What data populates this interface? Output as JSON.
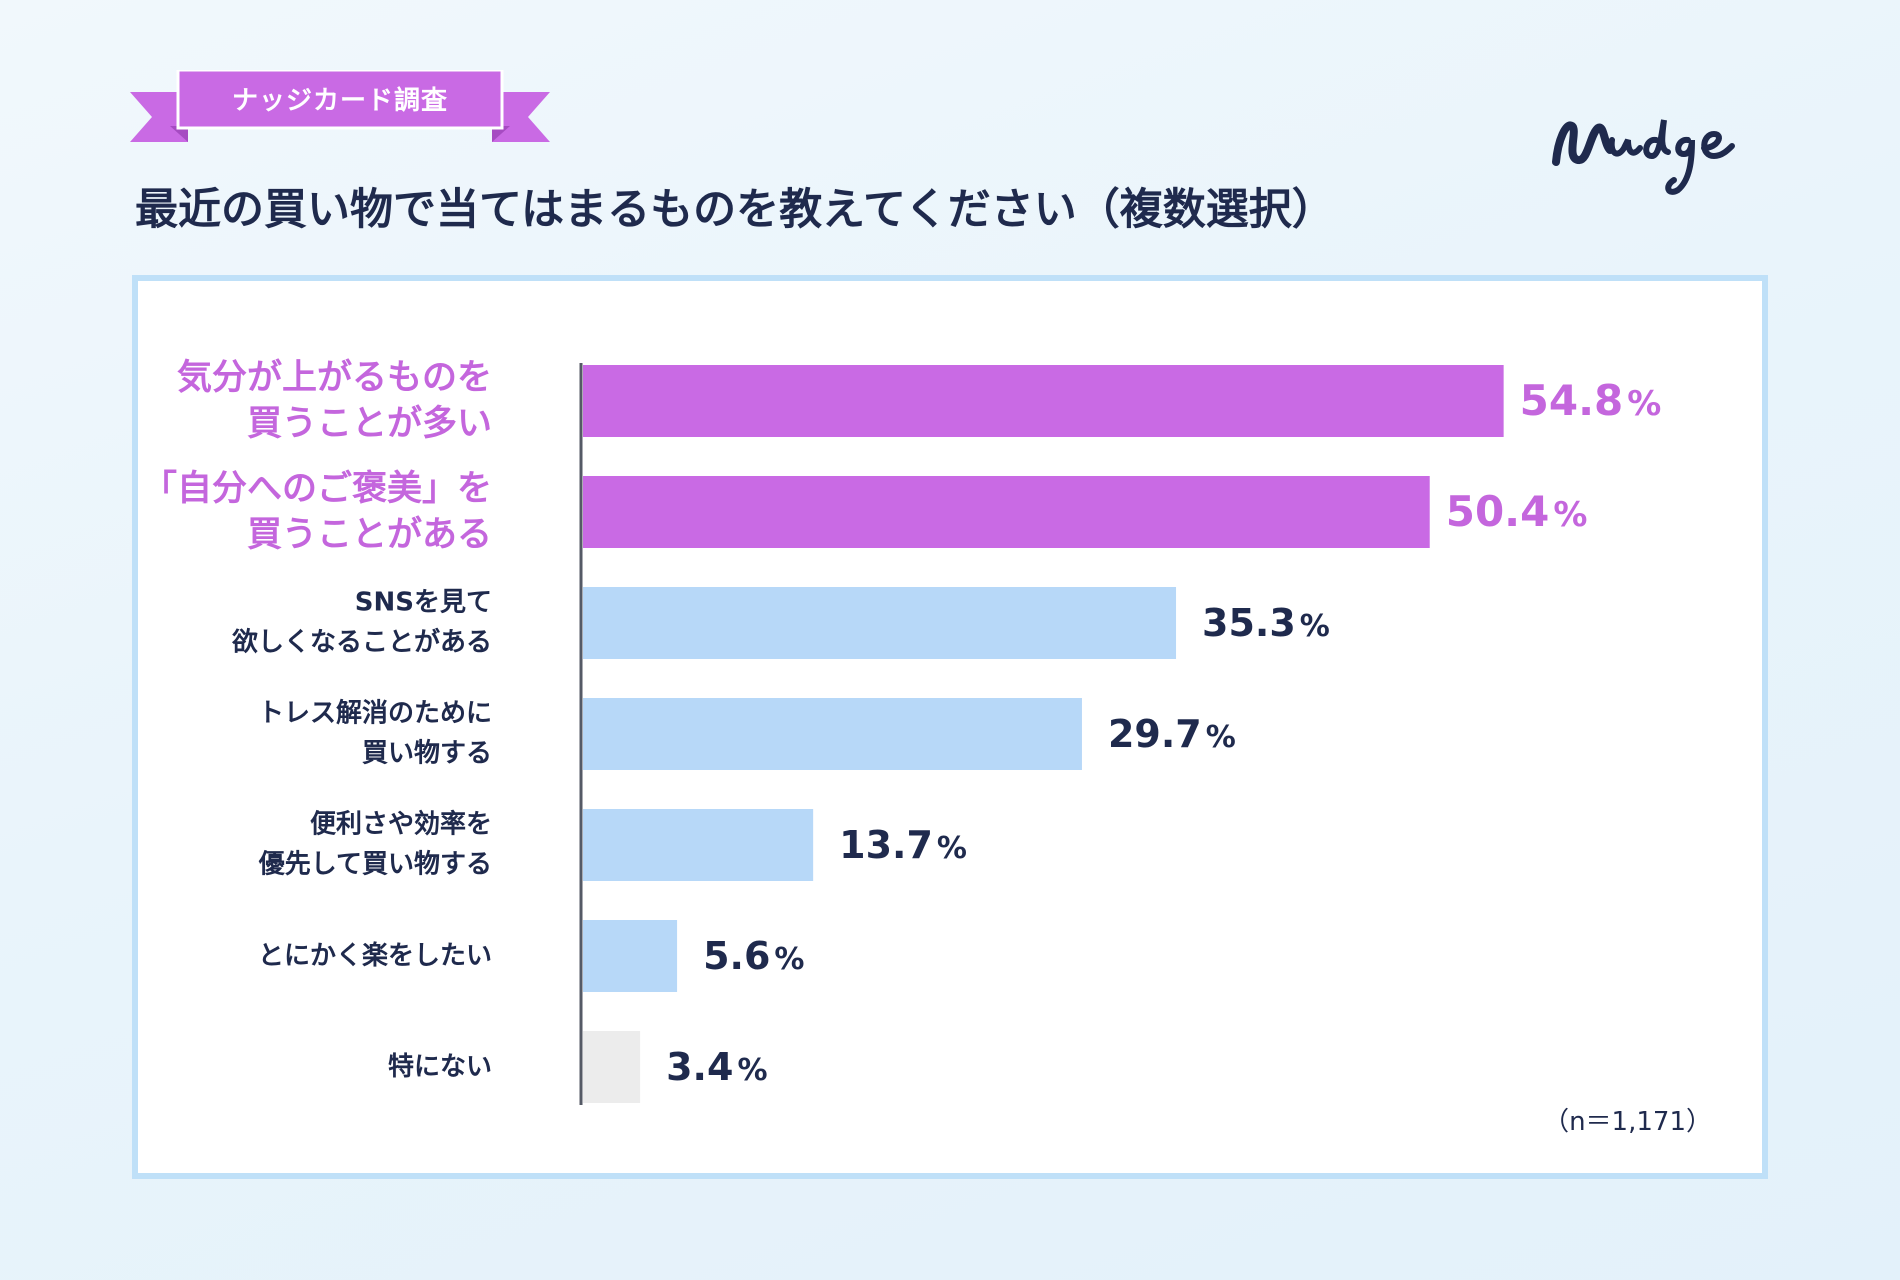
{
  "badge": {
    "label": "ナッジカード調査"
  },
  "title": "最近の買い物で当てはまるものを教えてください（複数選択）",
  "logo": {
    "text": "Nudge"
  },
  "colors": {
    "highlight": "#c96ae4",
    "highlight_text": "#c466dd",
    "normal": "#b7d8f8",
    "none": "#ececec",
    "text": "#1f2a4d",
    "ribbon": "#c96ae4",
    "ribbon_dark": "#a64bc2",
    "panel_border": "#bfe0f8"
  },
  "chart_data": {
    "type": "bar",
    "orientation": "horizontal",
    "title": "最近の買い物で当てはまるものを教えてください（複数選択）",
    "unit": "%",
    "xlim": [
      0,
      60
    ],
    "categories": [
      "気分が上がるものを\n買うことが多い",
      "「自分へのご褒美」を\n買うことがある",
      "SNSを見て\n欲しくなることがある",
      "トレス解消のために\n買い物する",
      "便利さや効率を\n優先して買い物する",
      "とにかく楽をしたい",
      "特にない"
    ],
    "values": [
      54.8,
      50.4,
      35.3,
      29.7,
      13.7,
      5.6,
      3.4
    ],
    "value_labels": [
      "54.8",
      "50.4",
      "35.3",
      "29.7",
      "13.7",
      "5.6",
      "3.4"
    ],
    "highlight": [
      true,
      true,
      false,
      false,
      false,
      false,
      false
    ],
    "none_option": [
      false,
      false,
      false,
      false,
      false,
      false,
      true
    ],
    "sample_note": "（n＝1,171）"
  }
}
